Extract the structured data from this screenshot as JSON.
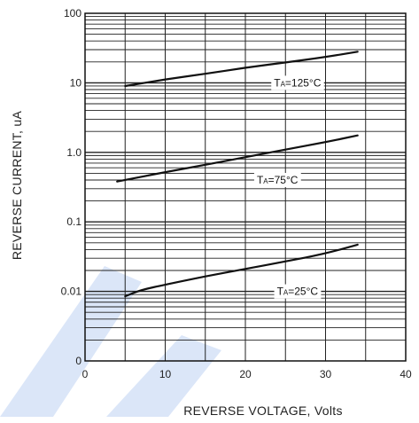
{
  "chart_data": {
    "type": "line",
    "title": "",
    "xlabel": "REVERSE VOLTAGE, Volts",
    "ylabel": "REVERSE CURRENT, uA",
    "xlim": [
      0,
      40
    ],
    "ylim": [
      0.001,
      100
    ],
    "yscale": "log",
    "grid": true,
    "x_ticks": [
      "0",
      "10",
      "20",
      "30",
      "40"
    ],
    "y_ticks": [
      {
        "value": 100,
        "label": "100"
      },
      {
        "value": 10,
        "label": "10"
      },
      {
        "value": 1,
        "label": "1.0"
      },
      {
        "value": 0.1,
        "label": "0.1"
      },
      {
        "value": 0.01,
        "label": "0.01"
      },
      {
        "value": 0.001,
        "label": "0"
      }
    ],
    "series": [
      {
        "name": "TA=125°C",
        "label_prefix": "T",
        "label_sub": "A",
        "label_suffix": "=125°C",
        "label_at": {
          "x": 26.5,
          "y": 10
        },
        "x": [
          5,
          10,
          15,
          20,
          25,
          30,
          34
        ],
        "y": [
          9,
          11.2,
          13.5,
          16.5,
          19.6,
          23.5,
          28
        ]
      },
      {
        "name": "TA=75°C",
        "label_prefix": "T",
        "label_sub": "A",
        "label_suffix": "=75°C",
        "label_at": {
          "x": 24,
          "y": 0.4
        },
        "x": [
          4,
          10,
          15,
          20,
          25,
          30,
          34
        ],
        "y": [
          0.38,
          0.52,
          0.66,
          0.85,
          1.1,
          1.4,
          1.75
        ]
      },
      {
        "name": "TA=25°C",
        "label_prefix": "T",
        "label_sub": "A",
        "label_suffix": "=25°C",
        "label_at": {
          "x": 26.5,
          "y": 0.01
        },
        "x": [
          5,
          7,
          10,
          15,
          20,
          25,
          30,
          34
        ],
        "y": [
          0.0085,
          0.0105,
          0.0125,
          0.0165,
          0.021,
          0.027,
          0.035,
          0.047
        ]
      }
    ]
  },
  "colors": {
    "line": "#111111",
    "grid": "#222222",
    "watermark": "#dbe6f8"
  }
}
